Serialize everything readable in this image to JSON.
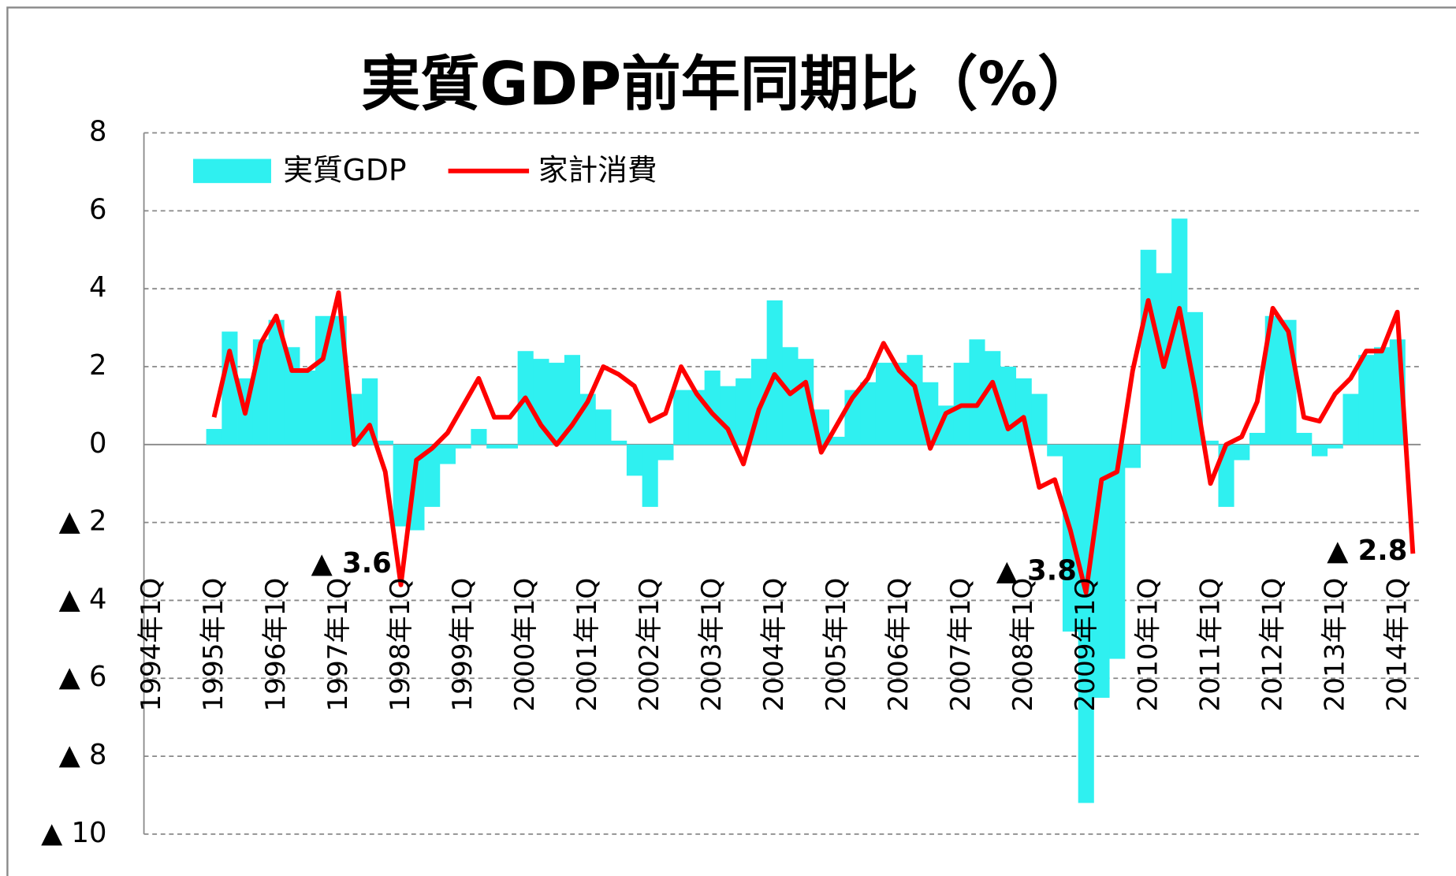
{
  "chart_data": {
    "type": "bar_line",
    "title": "実質GDP前年同期比（%）",
    "categories": [
      "1994年1Q",
      null,
      null,
      null,
      "1995年1Q",
      null,
      null,
      null,
      "1996年1Q",
      null,
      null,
      null,
      "1997年1Q",
      null,
      null,
      null,
      "1998年1Q",
      null,
      null,
      null,
      "1999年1Q",
      null,
      null,
      null,
      "2000年1Q",
      null,
      null,
      null,
      "2001年1Q",
      null,
      null,
      null,
      "2002年1Q",
      null,
      null,
      null,
      "2003年1Q",
      null,
      null,
      null,
      "2004年1Q",
      null,
      null,
      null,
      "2005年1Q",
      null,
      null,
      null,
      "2006年1Q",
      null,
      null,
      null,
      "2007年1Q",
      null,
      null,
      null,
      "2008年1Q",
      null,
      null,
      null,
      "2009年1Q",
      null,
      null,
      null,
      "2010年1Q",
      null,
      null,
      null,
      "2011年1Q",
      null,
      null,
      null,
      "2012年1Q",
      null,
      null,
      null,
      "2013年1Q",
      null,
      null,
      null,
      "2014年1Q",
      null
    ],
    "series": [
      {
        "name": "実質GDP",
        "type": "bar",
        "color": "#2ff0f0",
        "values": [
          null,
          null,
          null,
          null,
          0.4,
          2.9,
          1.7,
          2.7,
          3.2,
          2.5,
          1.9,
          3.3,
          3.3,
          1.3,
          1.7,
          0.1,
          -2.1,
          -2.2,
          -1.6,
          -0.5,
          -0.1,
          0.4,
          -0.1,
          -0.1,
          2.4,
          2.2,
          2.1,
          2.3,
          1.3,
          0.9,
          0.1,
          -0.8,
          -1.6,
          -0.4,
          1.4,
          1.4,
          1.9,
          1.5,
          1.7,
          2.2,
          3.7,
          2.5,
          2.2,
          0.9,
          0.2,
          1.4,
          1.6,
          2.1,
          2.1,
          2.3,
          1.6,
          1.0,
          2.1,
          2.7,
          2.4,
          2.0,
          1.7,
          1.3,
          -0.3,
          -4.8,
          -9.2,
          -6.5,
          -5.5,
          -0.6,
          5.0,
          4.4,
          5.8,
          3.4,
          0.1,
          -1.6,
          -0.4,
          0.3,
          3.3,
          3.2,
          0.3,
          -0.3,
          -0.1,
          1.3,
          2.3,
          2.5,
          2.7,
          null
        ]
      },
      {
        "name": "家計消費",
        "type": "line",
        "color": "#ff0000",
        "values": [
          null,
          null,
          null,
          null,
          0.7,
          2.4,
          0.8,
          2.6,
          3.3,
          1.9,
          1.9,
          2.2,
          3.9,
          0.0,
          0.5,
          -0.7,
          -3.6,
          -0.4,
          -0.1,
          0.3,
          1.0,
          1.7,
          0.7,
          0.7,
          1.2,
          0.5,
          0.0,
          0.5,
          1.1,
          2.0,
          1.8,
          1.5,
          0.6,
          0.8,
          2.0,
          1.3,
          0.8,
          0.4,
          -0.5,
          0.9,
          1.8,
          1.3,
          1.6,
          -0.2,
          0.5,
          1.2,
          1.7,
          2.6,
          1.9,
          1.5,
          -0.1,
          0.8,
          1.0,
          1.0,
          1.6,
          0.4,
          0.7,
          -1.1,
          -0.9,
          -2.2,
          -3.8,
          -0.9,
          -0.7,
          1.9,
          3.7,
          2.0,
          3.5,
          1.4,
          -1.0,
          0.0,
          0.2,
          1.1,
          3.5,
          2.9,
          0.7,
          0.6,
          1.3,
          1.7,
          2.4,
          2.4,
          3.4,
          -2.8
        ],
        "value_labels": [
          null,
          null,
          null,
          null,
          null,
          null,
          null,
          null,
          null,
          null,
          null,
          null,
          null,
          null,
          null,
          null,
          "▲ 3.6",
          null,
          null,
          null,
          null,
          null,
          null,
          null,
          null,
          null,
          null,
          null,
          null,
          null,
          null,
          null,
          null,
          null,
          null,
          null,
          null,
          null,
          null,
          null,
          null,
          null,
          null,
          null,
          null,
          null,
          null,
          null,
          null,
          null,
          null,
          null,
          null,
          null,
          null,
          null,
          null,
          null,
          null,
          null,
          "▲ 3.8",
          null,
          null,
          null,
          null,
          null,
          null,
          null,
          null,
          null,
          null,
          null,
          null,
          null,
          null,
          null,
          null,
          null,
          null,
          null,
          null,
          "▲ 2.8"
        ]
      }
    ],
    "ylim": [
      -10,
      8
    ],
    "yticks": [
      {
        "value": -10,
        "label": "▲ 10"
      },
      {
        "value": -8,
        "label": "▲ 8"
      },
      {
        "value": -6,
        "label": "▲ 6"
      },
      {
        "value": -4,
        "label": "▲ 4"
      },
      {
        "value": -2,
        "label": "▲ 2"
      },
      0,
      2,
      4,
      6,
      8
    ],
    "grid": true,
    "legend": "top-left"
  }
}
